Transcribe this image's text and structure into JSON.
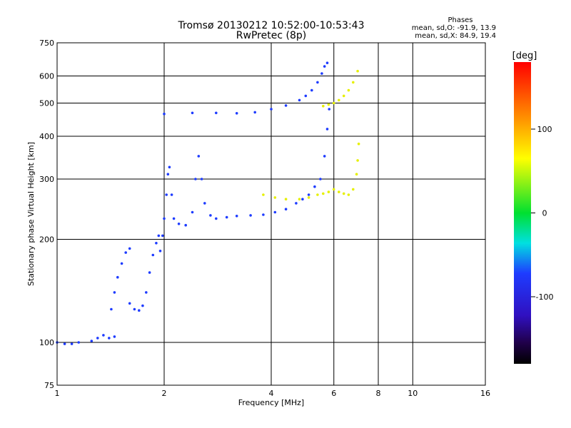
{
  "chart_data": {
    "type": "scatter",
    "title": "Tromsø 20130212 10:52:00-10:53:43",
    "subtitle": "RwPretec (8p)",
    "xlabel": "Frequency [MHz]",
    "ylabel": "Stationary phase Virtual Height [km]",
    "x_scale": "log",
    "y_scale": "log",
    "xlim": [
      1,
      16
    ],
    "ylim": [
      75,
      750
    ],
    "x_ticks": [
      1,
      2,
      4,
      6,
      8,
      10,
      16
    ],
    "x_tick_labels": [
      "1",
      "2",
      "4",
      "6",
      "8",
      "10",
      "16"
    ],
    "x_grid": [
      2,
      4,
      6,
      8,
      10
    ],
    "y_ticks": [
      75,
      100,
      200,
      300,
      400,
      500,
      600,
      750
    ],
    "y_tick_labels": [
      "75",
      "100",
      "200",
      "300",
      "400",
      "500",
      "600",
      "750"
    ],
    "y_grid": [
      100,
      200,
      300,
      400,
      500,
      600
    ],
    "grid": true,
    "stats": {
      "heading": "Phases",
      "line_o": "mean, sd,O: -91.9, 13.9",
      "line_x": "mean, sd,X:  84.9, 19.4"
    },
    "colorbar": {
      "label": "[deg]",
      "range": [
        -180,
        180
      ],
      "ticks": [
        100,
        0,
        -100
      ],
      "tick_labels": [
        "100",
        "0",
        "-100"
      ]
    },
    "series": [
      {
        "mode": "O",
        "phase": -100,
        "color": "#1e3cff",
        "points": [
          [
            1.0,
            100
          ],
          [
            1.05,
            99
          ],
          [
            1.1,
            99
          ],
          [
            1.15,
            100
          ],
          [
            1.25,
            101
          ],
          [
            1.3,
            103
          ],
          [
            1.35,
            105
          ],
          [
            1.4,
            103
          ],
          [
            1.45,
            104
          ],
          [
            1.42,
            125
          ],
          [
            1.45,
            140
          ],
          [
            1.48,
            155
          ],
          [
            1.52,
            170
          ],
          [
            1.56,
            183
          ],
          [
            1.6,
            188
          ],
          [
            1.6,
            130
          ],
          [
            1.65,
            125
          ],
          [
            1.7,
            124
          ],
          [
            1.74,
            128
          ],
          [
            1.78,
            140
          ],
          [
            1.82,
            160
          ],
          [
            1.86,
            180
          ],
          [
            1.9,
            195
          ],
          [
            1.93,
            205
          ],
          [
            1.95,
            185
          ],
          [
            1.98,
            205
          ],
          [
            2.0,
            230
          ],
          [
            2.03,
            270
          ],
          [
            2.05,
            310
          ],
          [
            2.07,
            325
          ],
          [
            2.1,
            270
          ],
          [
            2.13,
            230
          ],
          [
            2.2,
            222
          ],
          [
            2.3,
            220
          ],
          [
            2.4,
            240
          ],
          [
            2.45,
            300
          ],
          [
            2.5,
            350
          ],
          [
            2.55,
            300
          ],
          [
            2.6,
            255
          ],
          [
            2.7,
            235
          ],
          [
            2.8,
            230
          ],
          [
            3.0,
            232
          ],
          [
            3.2,
            234
          ],
          [
            3.5,
            235
          ],
          [
            3.8,
            236
          ],
          [
            4.1,
            240
          ],
          [
            4.4,
            245
          ],
          [
            4.7,
            255
          ],
          [
            4.9,
            262
          ],
          [
            5.1,
            270
          ],
          [
            5.3,
            285
          ],
          [
            5.5,
            300
          ],
          [
            5.65,
            350
          ],
          [
            5.75,
            420
          ],
          [
            5.82,
            480
          ],
          [
            2.0,
            465
          ],
          [
            2.4,
            468
          ],
          [
            2.8,
            468
          ],
          [
            3.2,
            467
          ],
          [
            3.6,
            470
          ],
          [
            4.0,
            480
          ],
          [
            4.4,
            492
          ],
          [
            4.8,
            510
          ],
          [
            5.0,
            525
          ],
          [
            5.2,
            545
          ],
          [
            5.4,
            575
          ],
          [
            5.55,
            610
          ],
          [
            5.65,
            640
          ],
          [
            5.75,
            655
          ]
        ]
      },
      {
        "mode": "X",
        "phase": 85,
        "color": "#e6f000",
        "points": [
          [
            3.8,
            270
          ],
          [
            4.1,
            265
          ],
          [
            4.4,
            262
          ],
          [
            4.8,
            262
          ],
          [
            5.1,
            265
          ],
          [
            5.4,
            270
          ],
          [
            5.6,
            272
          ],
          [
            5.8,
            275
          ],
          [
            6.0,
            280
          ],
          [
            6.2,
            275
          ],
          [
            6.4,
            272
          ],
          [
            6.6,
            270
          ],
          [
            6.8,
            280
          ],
          [
            6.95,
            310
          ],
          [
            7.0,
            340
          ],
          [
            7.05,
            380
          ],
          [
            5.6,
            490
          ],
          [
            5.8,
            495
          ],
          [
            6.0,
            500
          ],
          [
            6.2,
            510
          ],
          [
            6.4,
            525
          ],
          [
            6.6,
            545
          ],
          [
            6.8,
            575
          ],
          [
            7.0,
            620
          ]
        ]
      }
    ]
  }
}
